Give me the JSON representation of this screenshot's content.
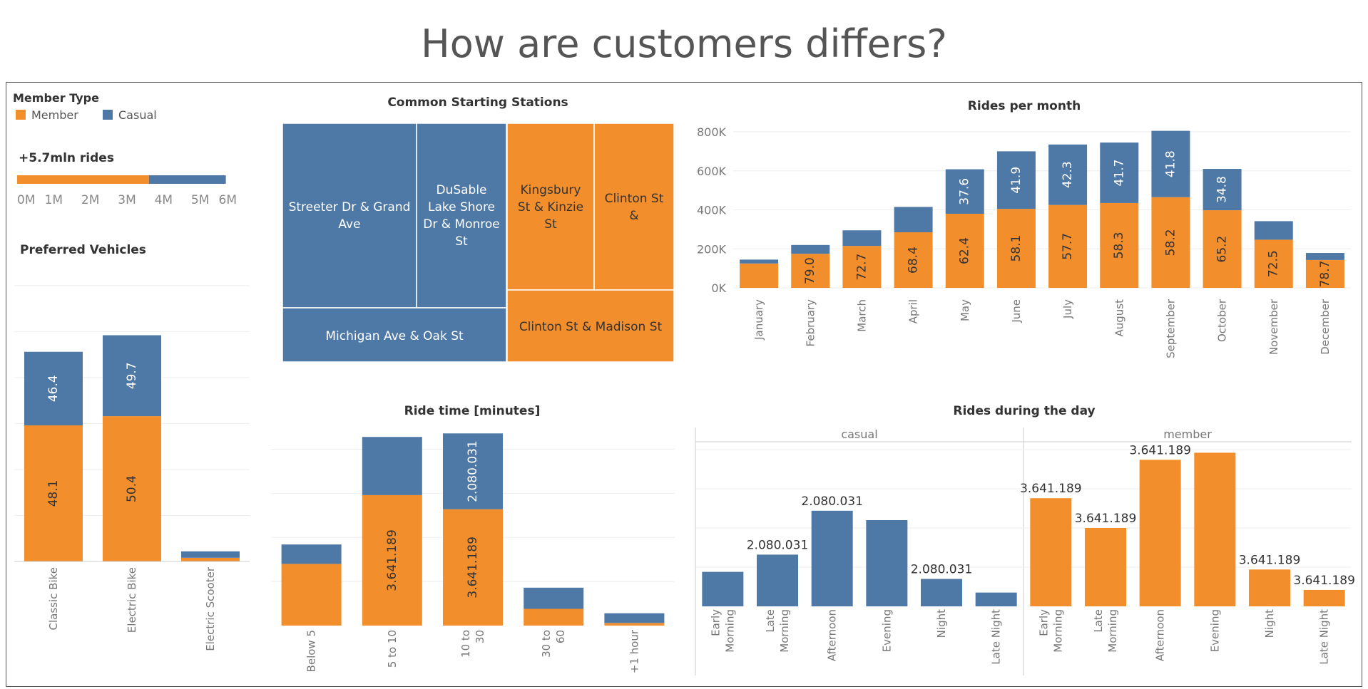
{
  "page": {
    "title": "How are customers differs?"
  },
  "colors": {
    "member": "#F28E2B",
    "casual": "#4E79A7",
    "axis": "#888888",
    "grid": "#eeeeee"
  },
  "legend": {
    "title": "Member Type",
    "items": [
      {
        "label": "Member",
        "color": "#F28E2B"
      },
      {
        "label": "Casual",
        "color": "#4E79A7"
      }
    ]
  },
  "chart_data": [
    {
      "id": "total-rides",
      "type": "bar",
      "title": "+5.7mln rides",
      "orientation": "horizontal",
      "xlim": [
        0,
        6000000
      ],
      "ticks": [
        "0M",
        "1M",
        "2M",
        "3M",
        "4M",
        "5M",
        "6M"
      ],
      "series": [
        {
          "name": "Member",
          "values": [
            3600000
          ]
        },
        {
          "name": "Casual",
          "values": [
            2100000
          ]
        }
      ]
    },
    {
      "id": "preferred-vehicles",
      "type": "bar",
      "title": "Preferred Vehicles",
      "categories": [
        "Classic Bike",
        "Electric Bike",
        "Electric Scooter"
      ],
      "ylim": [
        0,
        3200000
      ],
      "series": [
        {
          "name": "Member",
          "values": [
            1480000,
            1580000,
            40000
          ],
          "labels": [
            "48.1",
            "50.4",
            ""
          ]
        },
        {
          "name": "Casual",
          "values": [
            800000,
            880000,
            70000
          ],
          "labels": [
            "46.4",
            "49.7",
            ""
          ]
        }
      ]
    },
    {
      "id": "common-stations",
      "type": "treemap",
      "title": "Common Starting Stations",
      "items": [
        {
          "label": "Streeter Dr & Grand Ave",
          "group": "Casual"
        },
        {
          "label": "DuSable Lake Shore Dr & Monroe St",
          "group": "Casual"
        },
        {
          "label": "Michigan Ave & Oak St",
          "group": "Casual"
        },
        {
          "label": "Kingsbury St & Kinzie St",
          "group": "Member"
        },
        {
          "label": "Clinton St &",
          "group": "Member"
        },
        {
          "label": "Clinton St & Madison St",
          "group": "Member"
        }
      ]
    },
    {
      "id": "rides-per-month",
      "type": "bar",
      "title": "Rides per month",
      "categories": [
        "January",
        "February",
        "March",
        "April",
        "May",
        "June",
        "July",
        "August",
        "September",
        "October",
        "November",
        "December"
      ],
      "ylim": [
        -40000,
        800000
      ],
      "yticks": [
        0,
        200000,
        400000,
        600000,
        800000
      ],
      "ytick_labels": [
        "0K",
        "200K",
        "400K",
        "600K",
        "800K"
      ],
      "series": [
        {
          "name": "Member",
          "values": [
            125000,
            175000,
            215000,
            285000,
            380000,
            405000,
            425000,
            435000,
            465000,
            398000,
            247000,
            143000
          ],
          "labels": [
            "",
            "79.0",
            "72.7",
            "68.4",
            "62.4",
            "58.1",
            "57.7",
            "58.3",
            "58.2",
            "65.2",
            "72.5",
            "78.7"
          ]
        },
        {
          "name": "Casual",
          "values": [
            20000,
            45000,
            80000,
            130000,
            228000,
            295000,
            310000,
            310000,
            340000,
            212000,
            95000,
            36000
          ],
          "labels": [
            "",
            "",
            "",
            "",
            "37.6",
            "41.9",
            "42.3",
            "41.7",
            "41.8",
            "34.8",
            "",
            ""
          ]
        }
      ]
    },
    {
      "id": "ride-time",
      "type": "bar",
      "title": "Ride time [minutes]",
      "categories": [
        "Below 5",
        "5 to 10",
        "10 to 30",
        "30 to 60",
        "+1 hour"
      ],
      "ylim": [
        0,
        2150000
      ],
      "series": [
        {
          "name": "Member",
          "values": [
            700000,
            1480000,
            1320000,
            190000,
            30000
          ],
          "labels": [
            "",
            "3.641.189",
            "3.641.189",
            "",
            ""
          ]
        },
        {
          "name": "Casual",
          "values": [
            220000,
            660000,
            860000,
            240000,
            110000
          ],
          "labels": [
            "",
            "",
            "2.080.031",
            "",
            ""
          ]
        }
      ]
    },
    {
      "id": "rides-during-day",
      "type": "bar",
      "title": "Rides during the day",
      "panels": [
        "casual",
        "member"
      ],
      "categories": [
        "Early Morning",
        "Late Morning",
        "Afternoon",
        "Evening",
        "Night",
        "Late Night"
      ],
      "ylim": [
        0,
        1050000
      ],
      "series": [
        {
          "name": "casual",
          "values": [
            220000,
            330000,
            610000,
            550000,
            175000,
            88000
          ],
          "labels": [
            "",
            "2.080.031",
            "2.080.031",
            "",
            "2.080.031",
            ""
          ]
        },
        {
          "name": "member",
          "values": [
            690000,
            500000,
            935000,
            980000,
            235000,
            105000
          ],
          "labels": [
            "3.641.189",
            "3.641.189",
            "3.641.189",
            "",
            "3.641.189",
            "3.641.189"
          ]
        }
      ]
    }
  ]
}
